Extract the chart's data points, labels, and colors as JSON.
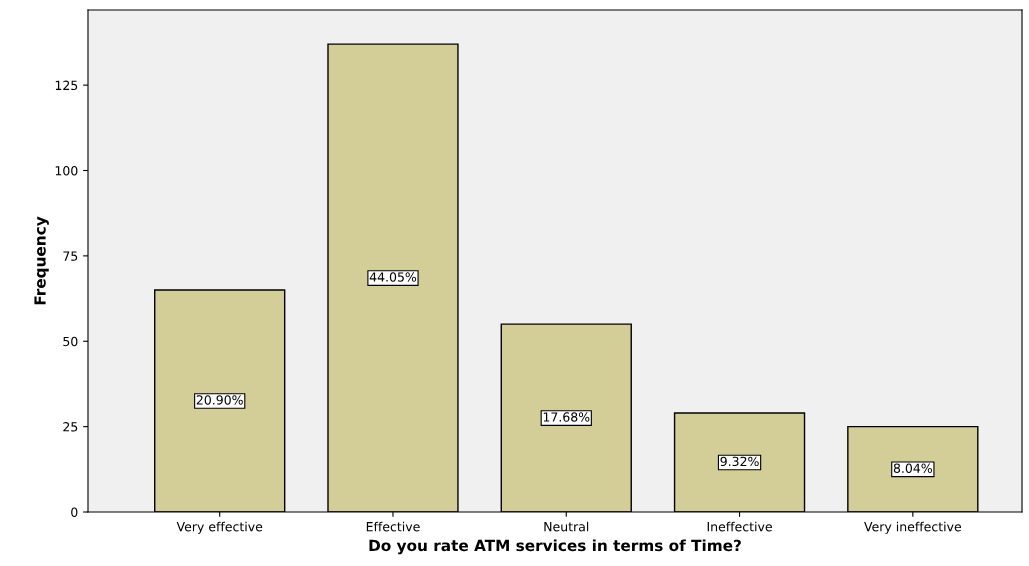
{
  "chart_data": {
    "type": "bar",
    "xlabel": "Do you rate ATM services in terms of Time?",
    "ylabel": "Frequency",
    "categories": [
      "Very effective",
      "Effective",
      "Neutral",
      "Ineffective",
      "Very ineffective"
    ],
    "values": [
      65,
      137,
      55,
      29,
      25
    ],
    "annotations": [
      "20.90%",
      "44.05%",
      "17.68%",
      "9.32%",
      "8.04%"
    ],
    "color": "#d3ce97",
    "ylim": [
      0,
      147
    ],
    "yticks": [
      0,
      25,
      50,
      75,
      100,
      125
    ],
    "grid": false,
    "legend": false
  }
}
